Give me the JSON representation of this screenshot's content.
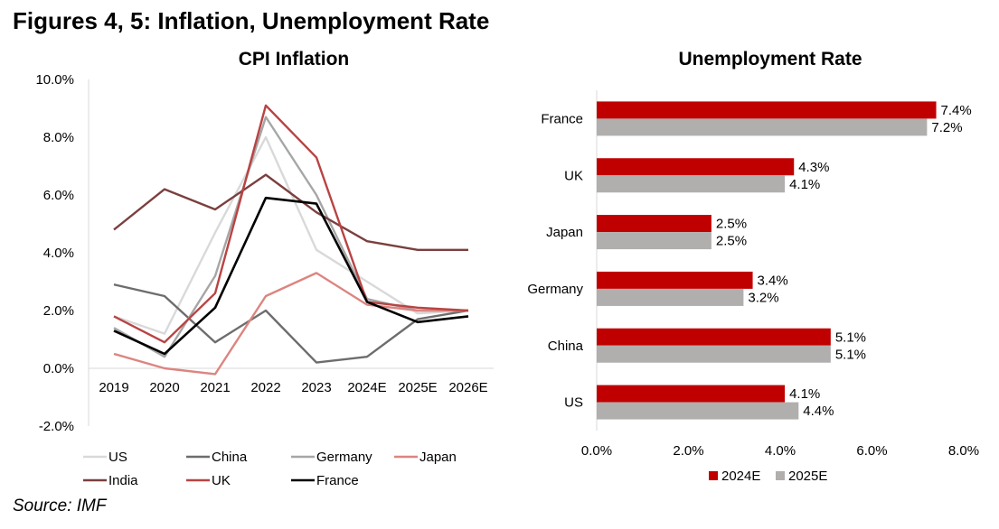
{
  "heading": "Figures 4, 5: Inflation, Unemployment Rate",
  "source": "Source: IMF",
  "chart_data": [
    {
      "type": "line",
      "title": "CPI Inflation",
      "xlabel": "",
      "ylabel": "",
      "categories": [
        "2019",
        "2020",
        "2021",
        "2022",
        "2023",
        "2024E",
        "2025E",
        "2026E"
      ],
      "ylim": [
        -2.0,
        10.0
      ],
      "yticks": [
        "-2.0%",
        "0.0%",
        "2.0%",
        "4.0%",
        "6.0%",
        "8.0%",
        "10.0%"
      ],
      "ytick_values": [
        -2,
        0,
        2,
        4,
        6,
        8,
        10
      ],
      "grid": false,
      "legend_position": "bottom",
      "series": [
        {
          "name": "US",
          "color": "#d9d9d9",
          "values": [
            1.8,
            1.2,
            4.7,
            8.0,
            4.1,
            3.0,
            1.9,
            2.0
          ]
        },
        {
          "name": "China",
          "color": "#6d6d6d",
          "values": [
            2.9,
            2.5,
            0.9,
            2.0,
            0.2,
            0.4,
            1.7,
            2.0
          ]
        },
        {
          "name": "Germany",
          "color": "#a6a6a6",
          "values": [
            1.4,
            0.4,
            3.2,
            8.7,
            6.0,
            2.4,
            2.0,
            2.0
          ]
        },
        {
          "name": "Japan",
          "color": "#dc8580",
          "values": [
            0.5,
            0.0,
            -0.2,
            2.5,
            3.3,
            2.2,
            2.0,
            2.0
          ]
        },
        {
          "name": "India",
          "color": "#7b3f3f",
          "values": [
            4.8,
            6.2,
            5.5,
            6.7,
            5.4,
            4.4,
            4.1,
            4.1
          ]
        },
        {
          "name": "UK",
          "color": "#b94343",
          "values": [
            1.8,
            0.9,
            2.6,
            9.1,
            7.3,
            2.3,
            2.1,
            2.0
          ]
        },
        {
          "name": "France",
          "color": "#000000",
          "values": [
            1.3,
            0.5,
            2.1,
            5.9,
            5.7,
            2.3,
            1.6,
            1.8
          ]
        }
      ]
    },
    {
      "type": "bar",
      "orientation": "horizontal",
      "title": "Unemployment Rate",
      "xlabel": "",
      "ylabel": "",
      "categories": [
        "France",
        "UK",
        "Japan",
        "Germany",
        "China",
        "US"
      ],
      "xlim": [
        0.0,
        8.0
      ],
      "xticks": [
        "0.0%",
        "2.0%",
        "4.0%",
        "6.0%",
        "8.0%"
      ],
      "xtick_values": [
        0,
        2,
        4,
        6,
        8
      ],
      "grid": false,
      "legend_position": "bottom",
      "series": [
        {
          "name": "2024E",
          "color": "#c00000",
          "values": [
            7.4,
            4.3,
            2.5,
            3.4,
            5.1,
            4.1
          ],
          "labels": [
            "7.4%",
            "4.3%",
            "2.5%",
            "3.4%",
            "5.1%",
            "4.1%"
          ]
        },
        {
          "name": "2025E",
          "color": "#b1aeae",
          "values": [
            7.2,
            4.1,
            2.5,
            3.2,
            5.1,
            4.4
          ],
          "labels": [
            "7.2%",
            "4.1%",
            "2.5%",
            "3.2%",
            "5.1%",
            "4.4%"
          ]
        }
      ]
    }
  ]
}
